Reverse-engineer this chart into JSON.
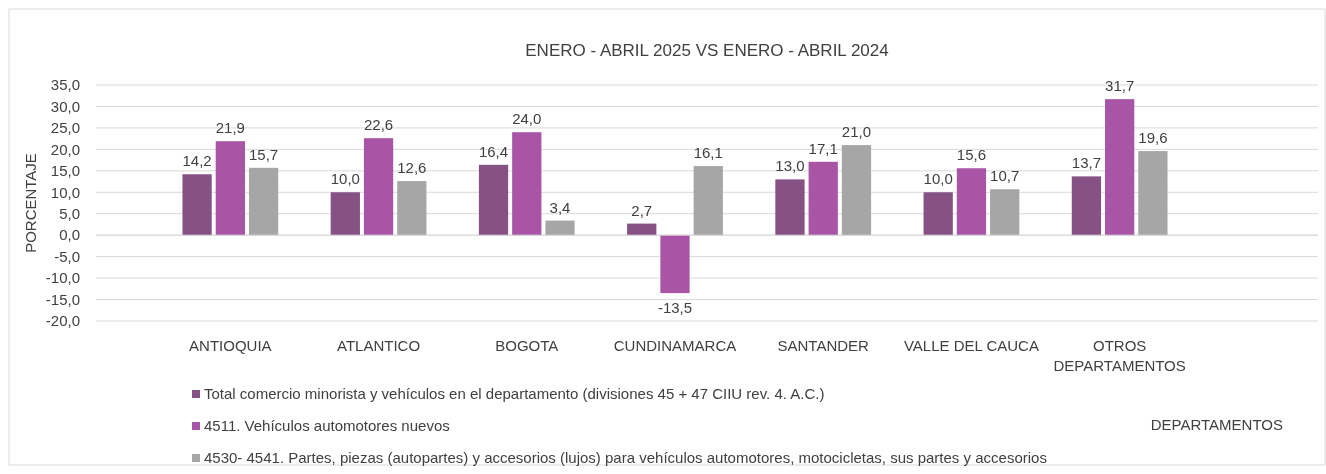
{
  "chart_data": {
    "type": "bar",
    "title": "ENERO - ABRIL 2025 VS ENERO - ABRIL 2024",
    "ylabel": "PORCENTAJE",
    "xlabel": "DEPARTAMENTOS",
    "categories": [
      "ANTIOQUIA",
      "ATLANTICO",
      "BOGOTA",
      "CUNDINAMARCA",
      "SANTANDER",
      "VALLE DEL CAUCA",
      "OTROS DEPARTAMENTOS"
    ],
    "series": [
      {
        "name": "Total comercio minorista y vehículos en el departamento (divisiones 45 + 47  CIIU rev. 4. A.C.)",
        "color": "#865184",
        "values": [
          14.2,
          10.0,
          16.4,
          2.7,
          13.0,
          10.0,
          13.7
        ],
        "value_labels": [
          "14,2",
          "10,0",
          "16,4",
          "2,7",
          "13,0",
          "10,0",
          "13,7"
        ]
      },
      {
        "name": "4511. Vehículos automotores nuevos",
        "color": "#a955a6",
        "values": [
          21.9,
          22.6,
          24.0,
          -13.5,
          17.1,
          15.6,
          31.7
        ],
        "value_labels": [
          "21,9",
          "22,6",
          "24,0",
          "-13,5",
          "17,1",
          "15,6",
          "31,7"
        ]
      },
      {
        "name": "4530- 4541. Partes, piezas (autopartes) y accesorios (lujos) para vehículos automotores, motocicletas, sus partes y accesorios",
        "color": "#a6a6a6",
        "values": [
          15.7,
          12.6,
          3.4,
          16.1,
          21.0,
          10.7,
          19.6
        ],
        "value_labels": [
          "15,7",
          "12,6",
          "3,4",
          "16,1",
          "21,0",
          "10,7",
          "19,6"
        ]
      }
    ],
    "ylim": [
      -20,
      35
    ],
    "yticks": [
      {
        "value": -20,
        "label": "-20,0"
      },
      {
        "value": -15,
        "label": "-15,0"
      },
      {
        "value": -10,
        "label": "-10,0"
      },
      {
        "value": -5,
        "label": "-5,0"
      },
      {
        "value": 0,
        "label": "0,0"
      },
      {
        "value": 5,
        "label": "5,0"
      },
      {
        "value": 10,
        "label": "10,0"
      },
      {
        "value": 15,
        "label": "15,0"
      },
      {
        "value": 20,
        "label": "20,0"
      },
      {
        "value": 25,
        "label": "25,0"
      },
      {
        "value": 30,
        "label": "30,0"
      },
      {
        "value": 35,
        "label": "35,0"
      }
    ],
    "grid": "y",
    "legend": "bottom"
  }
}
